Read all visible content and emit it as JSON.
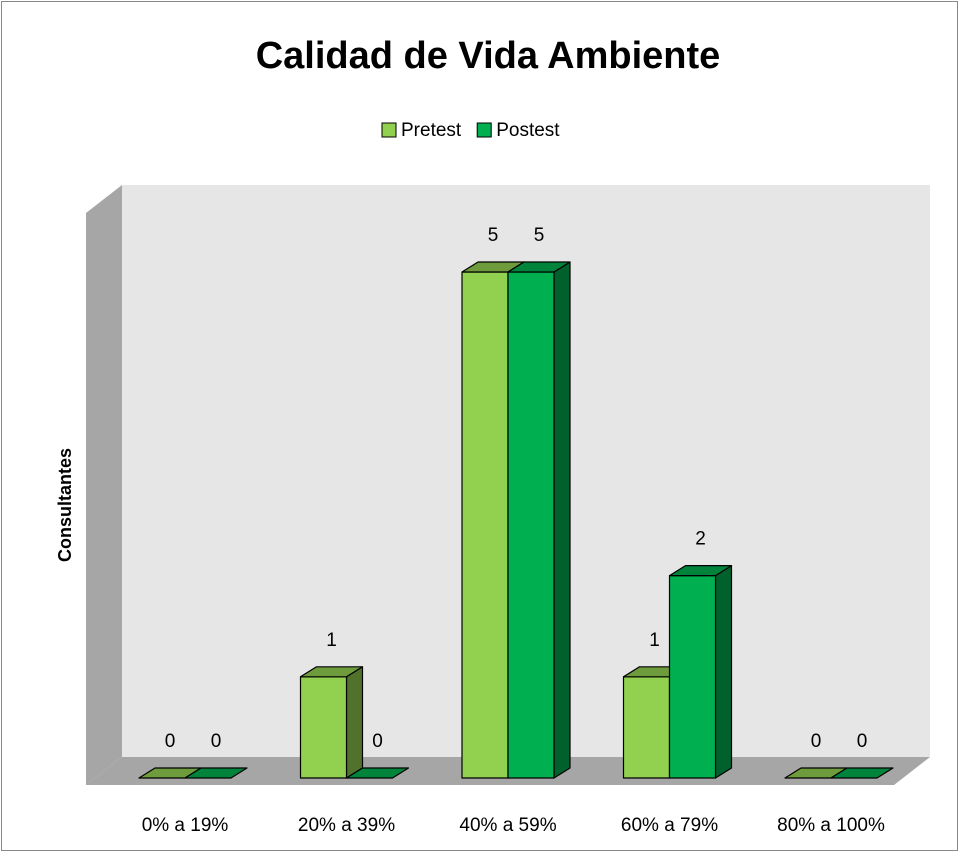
{
  "chart_data": {
    "type": "bar3d",
    "title": "Calidad de Vida Ambiente",
    "y_label": "Consultantes",
    "categories": [
      "0% a 19%",
      "20% a 39%",
      "40% a 59%",
      "60% a 79%",
      "80% a 100%"
    ],
    "series": [
      {
        "name": "Pretest",
        "color": "#92d050",
        "values": [
          0,
          1,
          5,
          1,
          0
        ]
      },
      {
        "name": "Postest",
        "color": "#00b050",
        "values": [
          0,
          0,
          5,
          2,
          0
        ]
      }
    ],
    "ylim": [
      0,
      5
    ],
    "legend": "top"
  }
}
